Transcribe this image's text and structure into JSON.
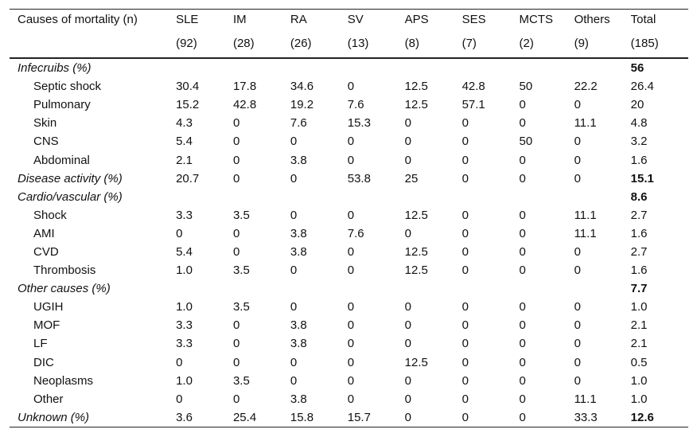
{
  "table": {
    "header": {
      "cause_label": "Causes of mortality (n)",
      "groups": [
        {
          "name": "SLE",
          "n": "(92)"
        },
        {
          "name": "IM",
          "n": "(28)"
        },
        {
          "name": "RA",
          "n": "(26)"
        },
        {
          "name": "SV",
          "n": "(13)"
        },
        {
          "name": "APS",
          "n": "(8)"
        },
        {
          "name": "SES",
          "n": "(7)"
        },
        {
          "name": "MCTS",
          "n": "(2)"
        },
        {
          "name": "Others",
          "n": "(9)"
        },
        {
          "name": "Total",
          "n": "(185)"
        }
      ]
    },
    "rows": [
      {
        "kind": "section",
        "label": "Infecruibs (%)",
        "values": [
          "",
          "",
          "",
          "",
          "",
          "",
          "",
          "",
          "56"
        ]
      },
      {
        "kind": "item",
        "label": "Septic shock",
        "values": [
          "30.4",
          "17.8",
          "34.6",
          "0",
          "12.5",
          "42.8",
          "50",
          "22.2",
          "26.4"
        ]
      },
      {
        "kind": "item",
        "label": "Pulmonary",
        "values": [
          "15.2",
          "42.8",
          "19.2",
          "7.6",
          "12.5",
          "57.1",
          "0",
          "0",
          "20"
        ]
      },
      {
        "kind": "item",
        "label": "Skin",
        "values": [
          "4.3",
          "0",
          "7.6",
          "15.3",
          "0",
          "0",
          "0",
          "11.1",
          "4.8"
        ]
      },
      {
        "kind": "item",
        "label": "CNS",
        "values": [
          "5.4",
          "0",
          "0",
          "0",
          "0",
          "0",
          "50",
          "0",
          "3.2"
        ]
      },
      {
        "kind": "item",
        "label": "Abdominal",
        "values": [
          "2.1",
          "0",
          "3.8",
          "0",
          "0",
          "0",
          "0",
          "0",
          "1.6"
        ]
      },
      {
        "kind": "section",
        "label": "Disease activity (%)",
        "values": [
          "20.7",
          "0",
          "0",
          "53.8",
          "25",
          "0",
          "0",
          "0",
          "15.1"
        ]
      },
      {
        "kind": "section",
        "label": "Cardio/vascular (%)",
        "values": [
          "",
          "",
          "",
          "",
          "",
          "",
          "",
          "",
          "8.6"
        ]
      },
      {
        "kind": "item",
        "label": "Shock",
        "values": [
          "3.3",
          "3.5",
          "0",
          "0",
          "12.5",
          "0",
          "0",
          "11.1",
          "2.7"
        ]
      },
      {
        "kind": "item",
        "label": "AMI",
        "values": [
          "0",
          "0",
          "3.8",
          "7.6",
          "0",
          "0",
          "0",
          "11.1",
          "1.6"
        ]
      },
      {
        "kind": "item",
        "label": "CVD",
        "values": [
          "5.4",
          "0",
          "3.8",
          "0",
          "12.5",
          "0",
          "0",
          "0",
          "2.7"
        ]
      },
      {
        "kind": "item",
        "label": "Thrombosis",
        "values": [
          "1.0",
          "3.5",
          "0",
          "0",
          "12.5",
          "0",
          "0",
          "0",
          "1.6"
        ]
      },
      {
        "kind": "section",
        "label": "Other causes (%)",
        "values": [
          "",
          "",
          "",
          "",
          "",
          "",
          "",
          "",
          "7.7"
        ]
      },
      {
        "kind": "item",
        "label": "UGIH",
        "values": [
          "1.0",
          "3.5",
          "0",
          "0",
          "0",
          "0",
          "0",
          "0",
          "1.0"
        ]
      },
      {
        "kind": "item",
        "label": "MOF",
        "values": [
          "3.3",
          "0",
          "3.8",
          "0",
          "0",
          "0",
          "0",
          "0",
          "2.1"
        ]
      },
      {
        "kind": "item",
        "label": "LF",
        "values": [
          "3.3",
          "0",
          "3.8",
          "0",
          "0",
          "0",
          "0",
          "0",
          "2.1"
        ]
      },
      {
        "kind": "item",
        "label": "DIC",
        "values": [
          "0",
          "0",
          "0",
          "0",
          "12.5",
          "0",
          "0",
          "0",
          "0.5"
        ]
      },
      {
        "kind": "item",
        "label": "Neoplasms",
        "values": [
          "1.0",
          "3.5",
          "0",
          "0",
          "0",
          "0",
          "0",
          "0",
          "1.0"
        ]
      },
      {
        "kind": "item",
        "label": "Other",
        "values": [
          "0",
          "0",
          "3.8",
          "0",
          "0",
          "0",
          "0",
          "11.1",
          "1.0"
        ]
      },
      {
        "kind": "section",
        "label": "Unknown (%)",
        "values": [
          "3.6",
          "25.4",
          "15.8",
          "15.7",
          "0",
          "0",
          "0",
          "33.3",
          "12.6"
        ]
      }
    ]
  }
}
